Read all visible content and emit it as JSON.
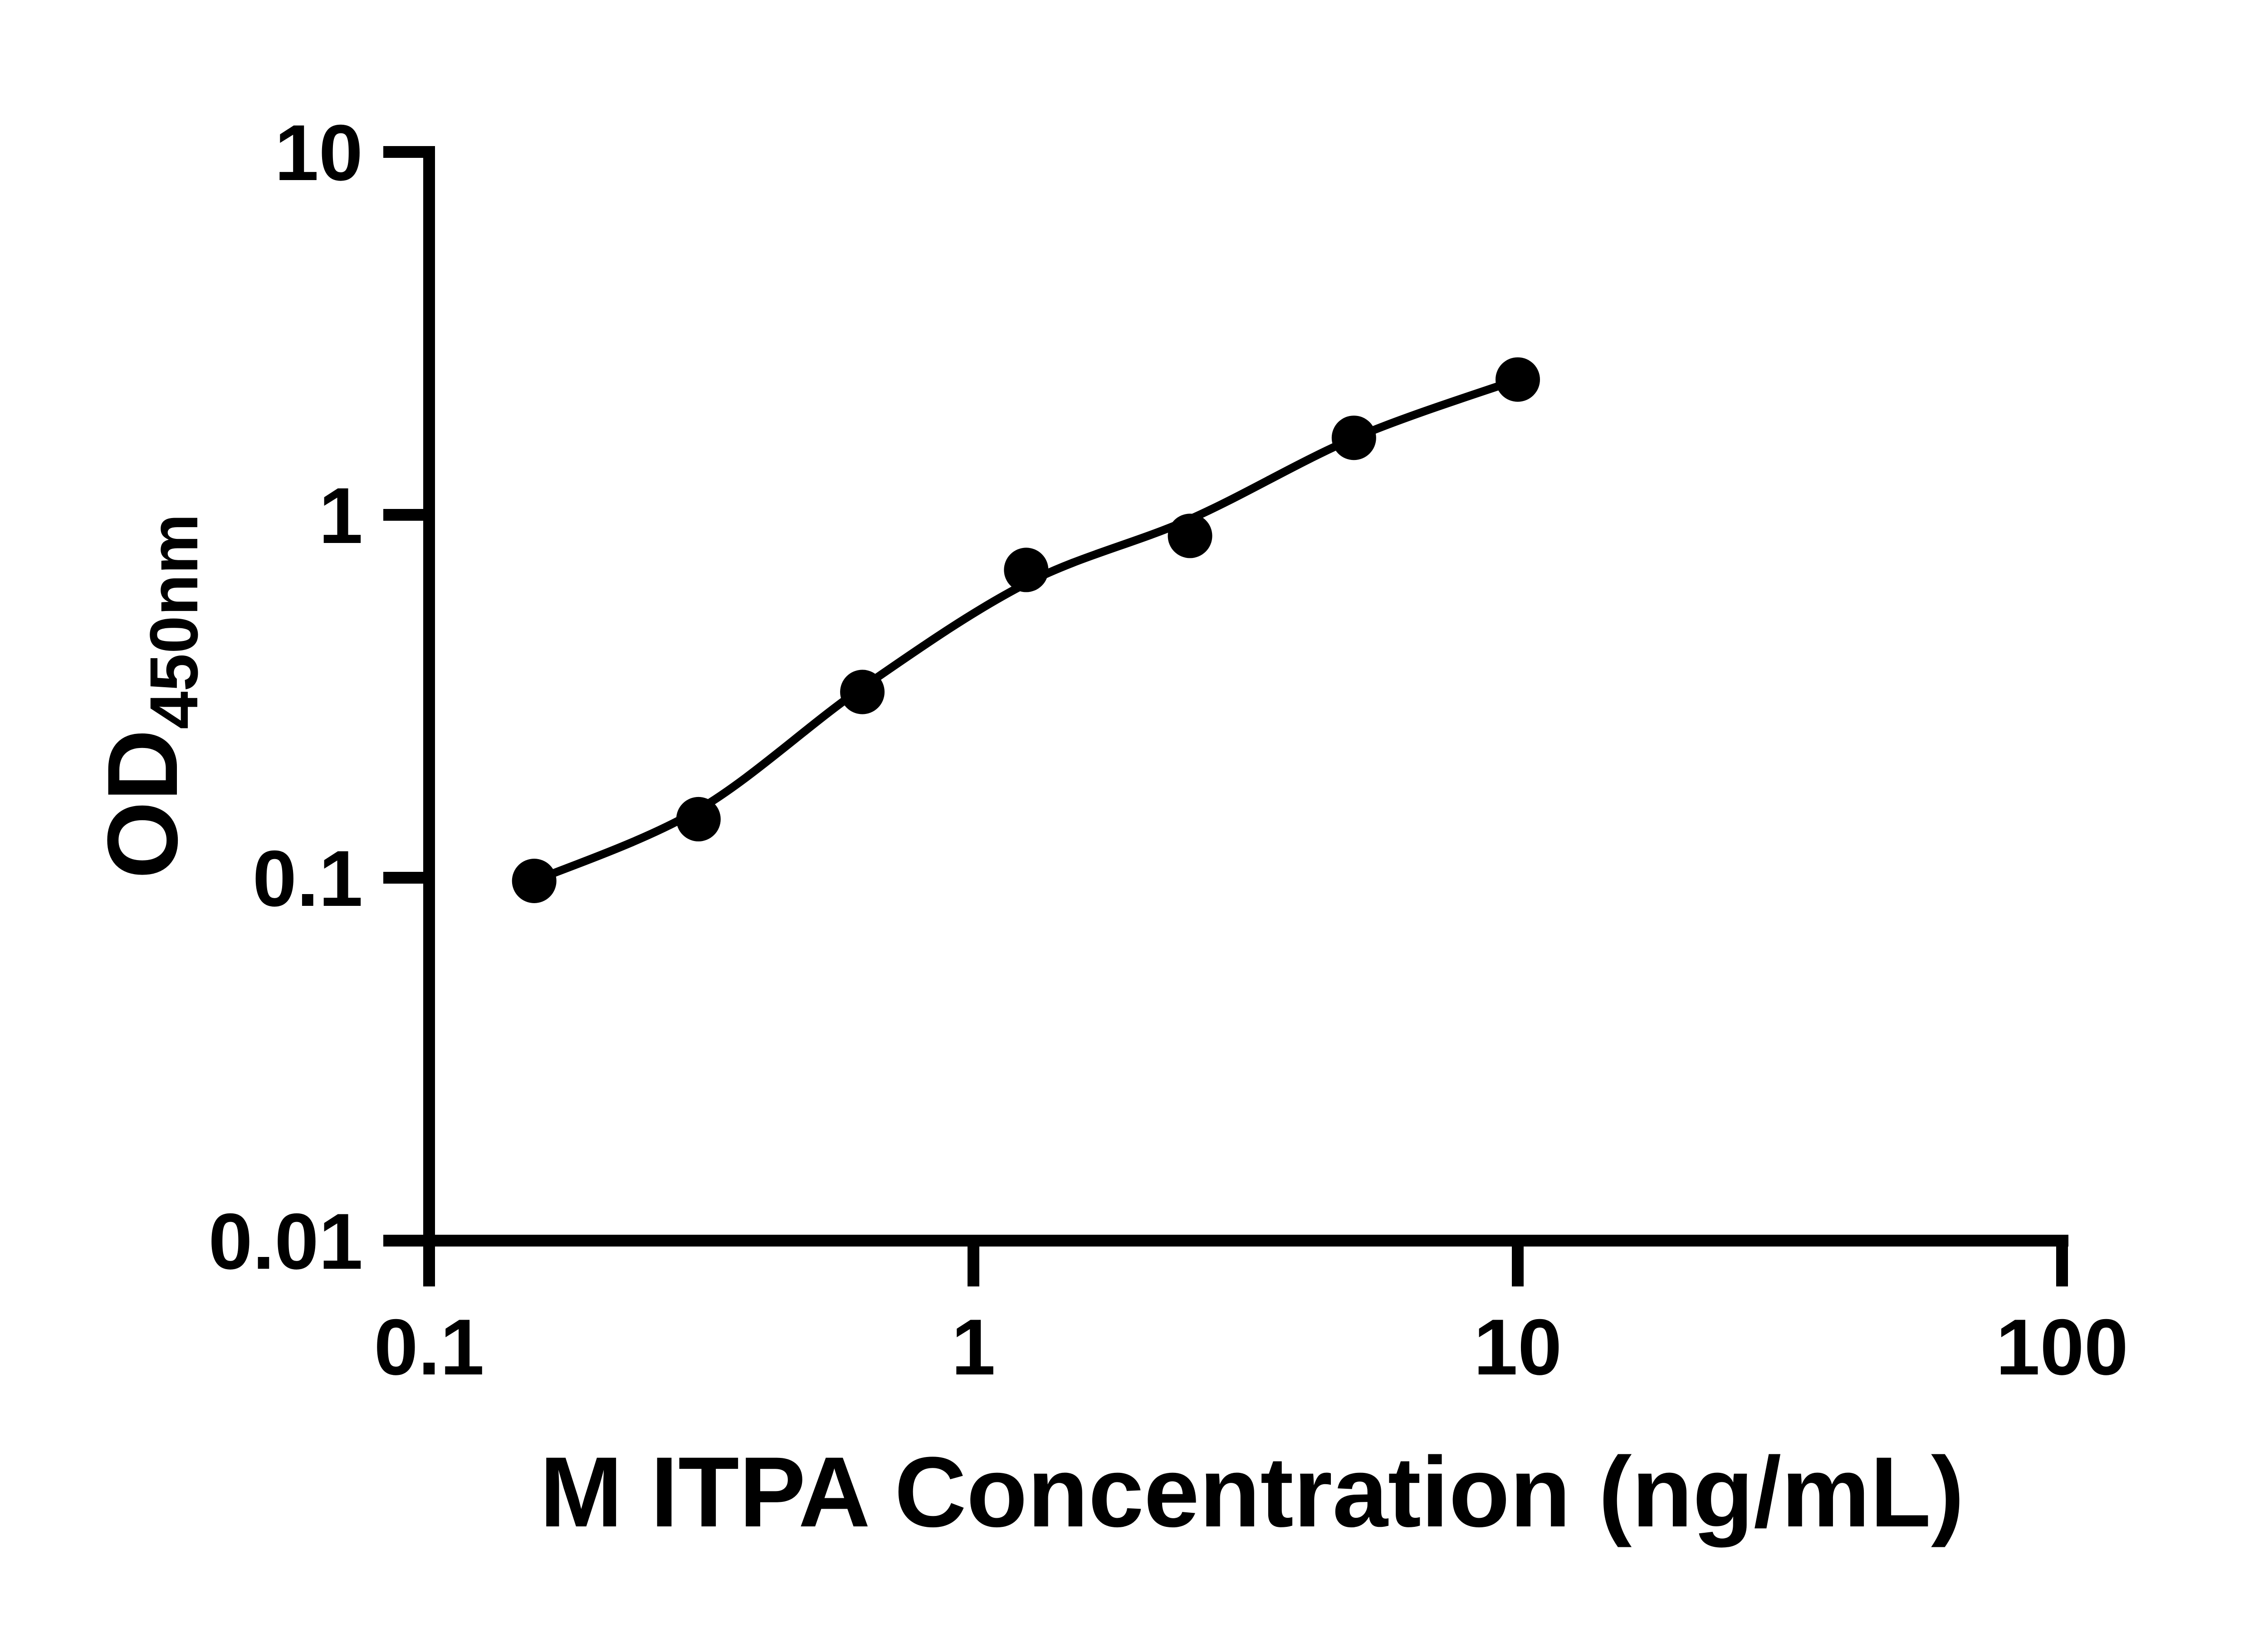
{
  "figure": {
    "background_color": "#ffffff",
    "foreground_color": "#000000"
  },
  "chart_data": {
    "type": "scatter",
    "title": "",
    "xlabel": "M ITPA Concentration (ng/mL)",
    "ylabel_main": "OD",
    "ylabel_subscript": "450nm",
    "x_scale": "log10",
    "y_scale": "log10",
    "xlim": [
      0.1,
      100
    ],
    "ylim": [
      0.01,
      10
    ],
    "x_tick_values": [
      0.1,
      1,
      10,
      100
    ],
    "x_tick_labels": [
      "0.1",
      "1",
      "10",
      "100"
    ],
    "y_tick_values": [
      10,
      1,
      0.1,
      0.01
    ],
    "y_tick_labels": [
      "10",
      "1",
      "0.1",
      "0.01"
    ],
    "grid": false,
    "legend_position": "none",
    "marker_color": "#000000",
    "line_color": "#000000",
    "series": [
      {
        "name": "M ITPA standard curve points",
        "marker": "filled-circle",
        "x": [
          0.156,
          0.3125,
          0.625,
          1.25,
          2.5,
          5,
          10
        ],
        "y": [
          0.098,
          0.145,
          0.325,
          0.705,
          0.875,
          1.63,
          2.36
        ]
      }
    ],
    "fit_curve": {
      "name": "standard curve fit line",
      "x": [
        0.156,
        0.3125,
        0.625,
        1.25,
        2.5,
        5,
        10
      ],
      "y": [
        0.098,
        0.154,
        0.334,
        0.647,
        0.973,
        1.627,
        2.36
      ]
    }
  }
}
